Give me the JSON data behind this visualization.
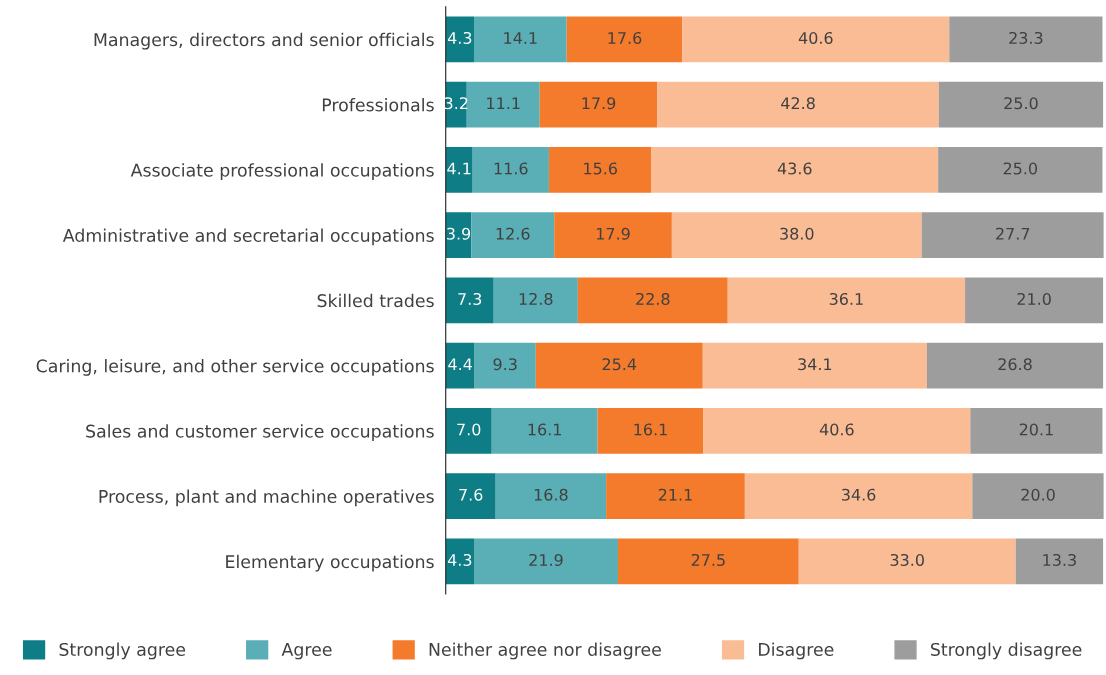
{
  "chart_data": {
    "type": "bar",
    "orientation": "horizontal",
    "stacked": true,
    "tick_labels": "y",
    "legend": "bottom",
    "grid": false,
    "categories": [
      "Managers, directors and senior officials",
      "Professionals",
      "Associate professional occupations",
      "Administrative and secretarial occupations",
      "Skilled trades",
      "Caring, leisure, and other service occupations",
      "Sales and customer service occupations",
      "Process, plant and machine operatives",
      "Elementary occupations"
    ],
    "series": [
      {
        "name": "Strongly agree",
        "color": "#0e7d85",
        "values": [
          4.3,
          3.2,
          4.1,
          3.9,
          7.3,
          4.4,
          7.0,
          7.6,
          4.3
        ],
        "value_labels": [
          "4.3",
          "3.2",
          "4.1",
          "3.9",
          "7.3",
          "4.4",
          "7.0",
          "7.6",
          "4.3"
        ]
      },
      {
        "name": "Agree",
        "color": "#5aaeb5",
        "values": [
          14.1,
          11.1,
          11.6,
          12.6,
          12.8,
          9.3,
          16.1,
          16.8,
          21.9
        ],
        "value_labels": [
          "14.1",
          "11.1",
          "11.6",
          "12.6",
          "12.8",
          "9.3",
          "16.1",
          "16.8",
          "21.9"
        ]
      },
      {
        "name": "Neither agree nor disagree",
        "color": "#f47a2c",
        "values": [
          17.6,
          17.9,
          15.6,
          17.9,
          22.8,
          25.4,
          16.1,
          21.1,
          27.5
        ],
        "value_labels": [
          "17.6",
          "17.9",
          "15.6",
          "17.9",
          "22.8",
          "25.4",
          "16.1",
          "21.1",
          "27.5"
        ]
      },
      {
        "name": "Disagree",
        "color": "#f9bc95",
        "values": [
          40.6,
          42.8,
          43.6,
          38.0,
          36.1,
          34.1,
          40.6,
          34.6,
          33.0
        ],
        "value_labels": [
          "40.6",
          "42.8",
          "43.6",
          "38.0",
          "36.1",
          "34.1",
          "40.6",
          "34.6",
          "33.0"
        ]
      },
      {
        "name": "Strongly disagree",
        "color": "#9d9d9d",
        "values": [
          23.3,
          25.0,
          25.0,
          27.7,
          21.0,
          26.8,
          20.1,
          20.0,
          13.3
        ],
        "value_labels": [
          "23.3",
          "25.0",
          "25.0",
          "27.7",
          "21.0",
          "26.8",
          "20.1",
          "20.0",
          "13.3"
        ]
      }
    ]
  }
}
